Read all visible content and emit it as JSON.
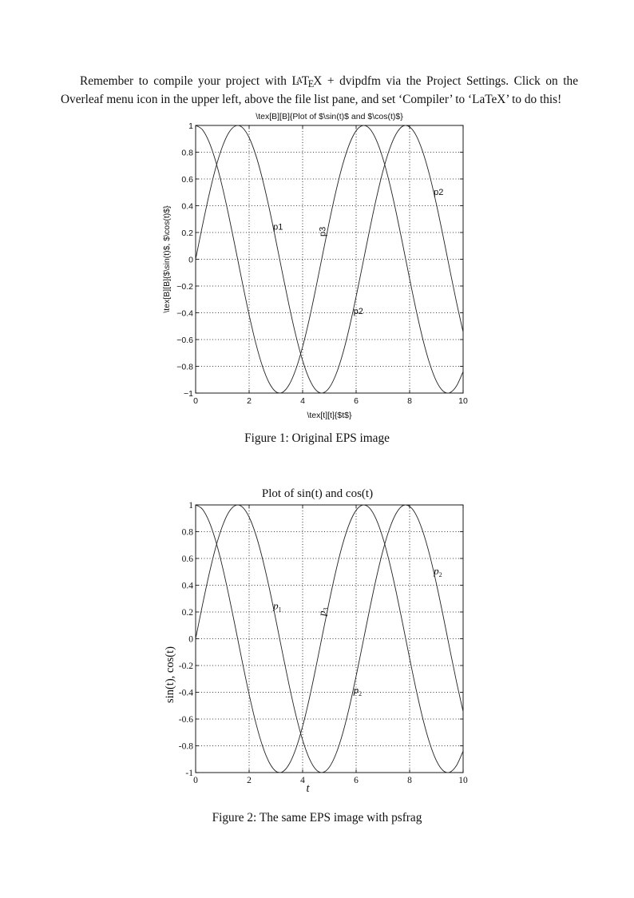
{
  "paragraph": {
    "before": "Remember to compile your project with ",
    "latex_logo": "LaTeX",
    "after": " + dvipdfm via the Project Settings. Click on the Overleaf menu icon in the upper left, above the file list pane, and set ‘Compiler’ to ‘LaTeX’ to do this!"
  },
  "figures": [
    {
      "caption": "Figure 1: Original EPS image"
    },
    {
      "caption": "Figure 2: The same EPS image with psfrag"
    }
  ],
  "chart_data": [
    {
      "type": "line",
      "title": "\\tex[B][B]{Plot of $\\sin(t)$ and $\\cos(t)$}",
      "xlabel": "\\tex[t][t]{$t$}",
      "ylabel": "\\tex[B][B]{$\\sin(t)$, $\\cos(t)$}",
      "xlim": [
        0,
        10
      ],
      "ylim": [
        -1,
        1
      ],
      "xticks": [
        "0",
        "2",
        "4",
        "6",
        "8",
        "10"
      ],
      "yticks": [
        "−1",
        "−0.8",
        "−0.6",
        "−0.4",
        "−0.2",
        "0",
        "0.2",
        "0.4",
        "0.6",
        "0.8",
        "1"
      ],
      "grid": true,
      "annotations": [
        {
          "text": "p1",
          "x": 2.9,
          "y": 0.22,
          "rotate": 0
        },
        {
          "text": "p3",
          "x": 4.85,
          "y": 0.17,
          "rotate": -90
        },
        {
          "text": "p2",
          "x": 5.9,
          "y": -0.41,
          "rotate": 0
        },
        {
          "text": "p2",
          "x": 8.9,
          "y": 0.48,
          "rotate": 0
        }
      ]
    },
    {
      "type": "line",
      "title": "Plot of sin(t) and cos(t)",
      "xlabel": "t",
      "ylabel": "sin(t), cos(t)",
      "xlim": [
        0,
        10
      ],
      "ylim": [
        -1,
        1
      ],
      "xticks": [
        "0",
        "2",
        "4",
        "6",
        "8",
        "10"
      ],
      "yticks": [
        "-1",
        "-0.8",
        "-0.6",
        "-0.4",
        "-0.2",
        "0",
        "0.2",
        "0.4",
        "0.6",
        "0.8",
        "1"
      ],
      "grid": true,
      "annotations": [
        {
          "text": "p",
          "sub": "1",
          "x": 2.9,
          "y": 0.22,
          "rotate": 0
        },
        {
          "text": "p",
          "sub": "3",
          "x": 4.85,
          "y": 0.17,
          "rotate": -90
        },
        {
          "text": "p",
          "sub": "2",
          "x": 5.9,
          "y": -0.41,
          "rotate": 0
        },
        {
          "text": "p",
          "sub": "2",
          "x": 8.9,
          "y": 0.48,
          "rotate": 0
        }
      ]
    }
  ],
  "series_data": {
    "x": [
      0,
      0.25,
      0.5,
      0.75,
      1,
      1.25,
      1.5,
      1.75,
      2,
      2.25,
      2.5,
      2.75,
      3,
      3.25,
      3.5,
      3.75,
      4,
      4.25,
      4.5,
      4.75,
      5,
      5.25,
      5.5,
      5.75,
      6,
      6.25,
      6.5,
      6.75,
      7,
      7.25,
      7.5,
      7.75,
      8,
      8.25,
      8.5,
      8.75,
      9,
      9.25,
      9.5,
      9.75,
      10
    ],
    "sin": [
      0,
      0.247,
      0.479,
      0.682,
      0.841,
      0.949,
      0.997,
      0.984,
      0.909,
      0.778,
      0.598,
      0.382,
      0.141,
      -0.108,
      -0.351,
      -0.572,
      -0.757,
      -0.895,
      -0.978,
      -0.999,
      -0.959,
      -0.859,
      -0.706,
      -0.508,
      -0.279,
      -0.033,
      0.215,
      0.45,
      0.657,
      0.823,
      0.938,
      0.995,
      0.989,
      0.923,
      0.798,
      0.625,
      0.412,
      0.174,
      -0.075,
      -0.319,
      -0.544
    ],
    "cos": [
      1,
      0.969,
      0.878,
      0.732,
      0.54,
      0.315,
      0.071,
      -0.178,
      -0.416,
      -0.628,
      -0.801,
      -0.924,
      -0.99,
      -0.994,
      -0.936,
      -0.82,
      -0.654,
      -0.447,
      -0.211,
      0.038,
      0.284,
      0.512,
      0.709,
      0.861,
      0.96,
      0.999,
      0.977,
      0.893,
      0.754,
      0.568,
      0.347,
      0.103,
      -0.146,
      -0.386,
      -0.602,
      -0.78,
      -0.911,
      -0.985,
      -0.997,
      -0.948,
      -0.839
    ]
  }
}
